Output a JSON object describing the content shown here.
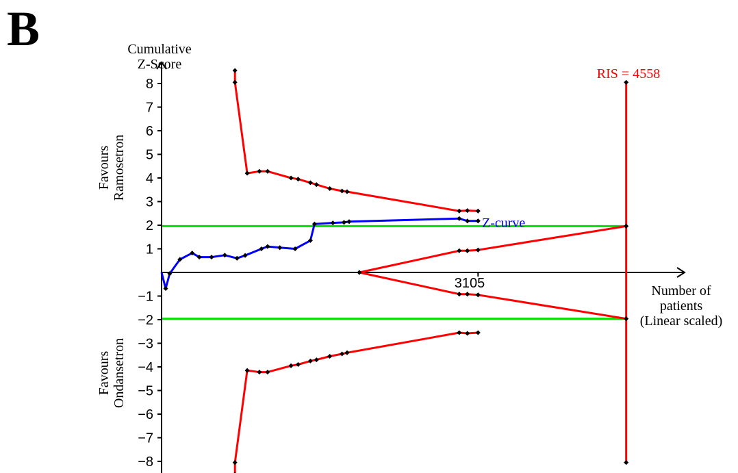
{
  "panel_label": "B",
  "chart_data": {
    "type": "line",
    "y_axis_title": [
      "Cumulative",
      "Z-Score"
    ],
    "x_axis_title": [
      "Number of",
      "patients",
      "(Linear scaled)"
    ],
    "favours_top": [
      "Favours",
      "Ramosetron"
    ],
    "favours_bottom": [
      "Favours",
      "Ondansetron"
    ],
    "y_ticks": [
      8,
      7,
      6,
      5,
      4,
      3,
      2,
      1,
      -1,
      -2,
      -3,
      -4,
      -5,
      -6,
      -7,
      -8
    ],
    "y_tick_labels": [
      "8",
      "7",
      "6",
      "5",
      "4",
      "3",
      "2",
      "1",
      "−1",
      "−2",
      "−3",
      "−4",
      "−5",
      "−6",
      "−7",
      "−8"
    ],
    "ylim": [
      -8.5,
      8.5
    ],
    "xlim": [
      0,
      5000
    ],
    "x_tick_value": 3105,
    "x_tick_label": "3105",
    "ris": {
      "label": "RIS = 4558",
      "value": 4558
    },
    "conventional_boundaries": [
      1.96,
      -1.96
    ],
    "series": [
      {
        "name": "Z-curve",
        "color": "#0000ff",
        "x": [
          0,
          40,
          80,
          180,
          300,
          370,
          490,
          620,
          740,
          820,
          980,
          1040,
          1160,
          1310,
          1460,
          1500,
          1680,
          1790,
          1840,
          2920,
          3000,
          3105
        ],
        "y": [
          0,
          -0.68,
          -0.05,
          0.55,
          0.82,
          0.65,
          0.65,
          0.73,
          0.6,
          0.72,
          1.0,
          1.1,
          1.05,
          1.0,
          1.35,
          2.05,
          2.1,
          2.12,
          2.15,
          2.28,
          2.18,
          2.18
        ]
      },
      {
        "name": "",
        "color": "#ff0000",
        "x": [
          720,
          720,
          840,
          960,
          1040,
          1270,
          1340,
          1460,
          1520,
          1650,
          1770,
          1820,
          2920,
          3000,
          3105
        ],
        "y": [
          8.55,
          8.05,
          4.2,
          4.28,
          4.28,
          4.0,
          3.95,
          3.8,
          3.72,
          3.55,
          3.45,
          3.42,
          2.6,
          2.62,
          2.6
        ]
      },
      {
        "name": "",
        "color": "#ff0000",
        "x": [
          720,
          720,
          840,
          960,
          1040,
          1270,
          1340,
          1460,
          1520,
          1650,
          1770,
          1820,
          2920,
          3000,
          3105
        ],
        "y": [
          -8.55,
          -8.05,
          -4.15,
          -4.22,
          -4.22,
          -3.95,
          -3.9,
          -3.75,
          -3.7,
          -3.55,
          -3.45,
          -3.4,
          -2.55,
          -2.58,
          -2.55
        ]
      },
      {
        "name": "",
        "color": "#ff0000",
        "x": [
          1940,
          2920,
          3000,
          3105,
          4558
        ],
        "y": [
          0,
          0.92,
          0.92,
          0.95,
          1.96
        ]
      },
      {
        "name": "",
        "color": "#ff0000",
        "x": [
          1940,
          2920,
          3000,
          3105,
          4558
        ],
        "y": [
          0,
          -0.92,
          -0.92,
          -0.95,
          -1.96
        ]
      }
    ]
  }
}
